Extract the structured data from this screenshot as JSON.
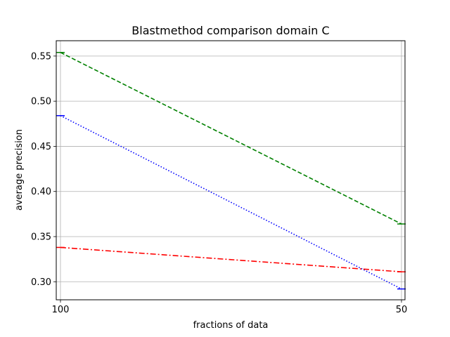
{
  "chart_data": {
    "type": "line",
    "title": "Blastmethod comparison domain C",
    "xlabel": "fractions of data",
    "ylabel": "average precision",
    "x_categories": [
      "100",
      "50"
    ],
    "ylim": [
      0.28,
      0.567
    ],
    "y_ticks": [
      0.3,
      0.35,
      0.4,
      0.45,
      0.5,
      0.55
    ],
    "y_tick_labels": [
      "0.30",
      "0.35",
      "0.40",
      "0.45",
      "0.50",
      "0.55"
    ],
    "grid": true,
    "legend": "none",
    "series": [
      {
        "values": [
          0.554,
          0.364
        ],
        "color": "#008000",
        "style": "dashed",
        "errorbar": [
          0.001,
          0.001
        ]
      },
      {
        "values": [
          0.484,
          0.292
        ],
        "color": "#0000ff",
        "style": "dotted",
        "errorbar": [
          0.001,
          0.001
        ]
      },
      {
        "values": [
          0.338,
          0.311
        ],
        "color": "#ff0000",
        "style": "dashdot",
        "errorbar": [
          0,
          0
        ]
      }
    ]
  }
}
